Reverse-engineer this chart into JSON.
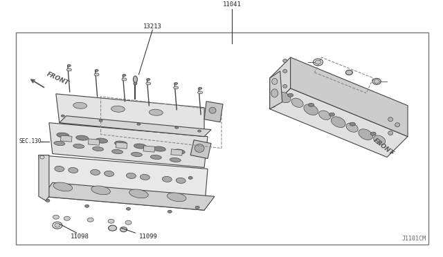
{
  "bg_color": "#ffffff",
  "border_color": "#888888",
  "line_color": "#333333",
  "text_color": "#222222",
  "fig_width": 6.4,
  "fig_height": 3.72,
  "dpi": 100,
  "watermark": "J1101CM",
  "label_11041": "11041",
  "label_13213": "13213",
  "label_11098": "11098",
  "label_11099": "11099",
  "label_sec130": "SEC.130",
  "label_front_left": "FRONT",
  "label_front_right": "FRONT",
  "outline_color": "#444444",
  "dashed_color": "#888888",
  "gray_dark": "#555555",
  "gray_mid": "#888888",
  "gray_light": "#cccccc",
  "gray_fill": "#e0e0e0"
}
